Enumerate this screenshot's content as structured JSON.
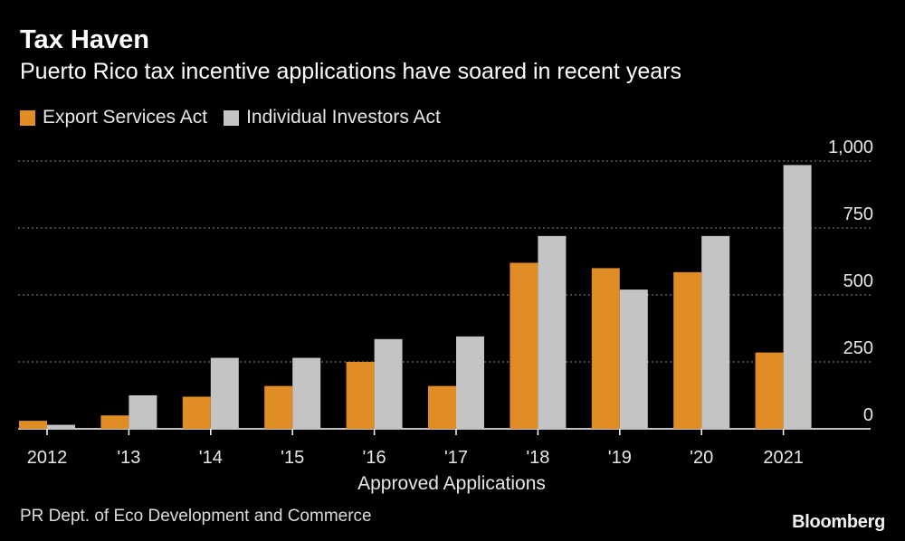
{
  "header": {
    "title": "Tax Haven",
    "subtitle": "Puerto Rico tax incentive applications have soared in recent years"
  },
  "legend": [
    {
      "label": "Export Services Act",
      "color": "#e08d25"
    },
    {
      "label": "Individual Investors Act",
      "color": "#c4c4c4"
    }
  ],
  "footer": {
    "source": "PR Dept. of Eco Development and Commerce",
    "brand": "Bloomberg"
  },
  "chart_data": {
    "type": "bar",
    "categories": [
      "2012",
      "'13",
      "'14",
      "'15",
      "'16",
      "'17",
      "'18",
      "'19",
      "'20",
      "2021"
    ],
    "series": [
      {
        "name": "Export Services Act",
        "color": "#e08d25",
        "values": [
          30,
          50,
          120,
          160,
          250,
          160,
          620,
          600,
          585,
          285
        ]
      },
      {
        "name": "Individual Investors Act",
        "color": "#c4c4c4",
        "values": [
          15,
          125,
          265,
          265,
          335,
          345,
          720,
          520,
          720,
          985
        ]
      }
    ],
    "xlabel": "Approved Applications",
    "ylabel": "",
    "ylim": [
      0,
      1000
    ],
    "yticks": [
      0,
      250,
      500,
      750,
      1000
    ],
    "ytick_labels": [
      "0",
      "250",
      "500",
      "750",
      "1,000"
    ],
    "grid": true,
    "axis_position": "right"
  }
}
